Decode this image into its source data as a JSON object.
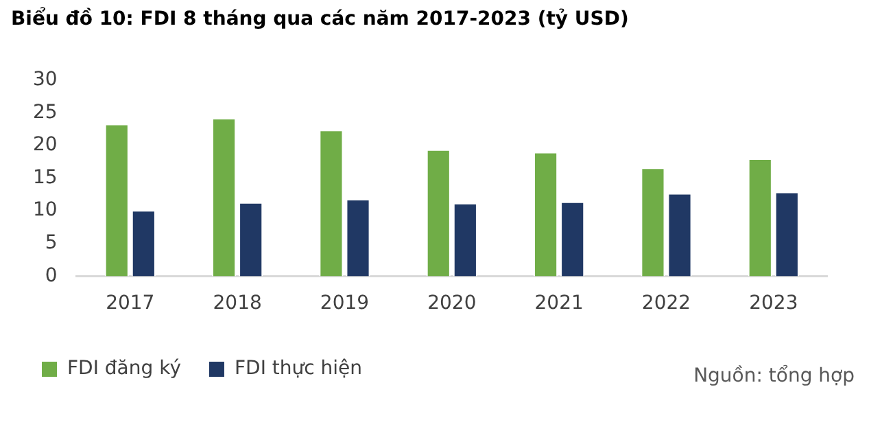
{
  "chart_data": {
    "type": "bar",
    "title": "Biểu đồ 10: FDI 8 tháng qua các năm 2017-2023 (tỷ USD)",
    "categories": [
      "2017",
      "2018",
      "2019",
      "2020",
      "2021",
      "2022",
      "2023"
    ],
    "series": [
      {
        "name": "FDI đăng ký",
        "color": "#70ad47",
        "values": [
          23.3,
          24.2,
          22.4,
          19.4,
          19.0,
          16.6,
          18.0
        ]
      },
      {
        "name": "FDI thực hiện",
        "color": "#203864",
        "values": [
          10.1,
          11.3,
          11.8,
          11.2,
          11.4,
          12.7,
          12.9
        ]
      }
    ],
    "ylim": [
      0,
      30
    ],
    "yticks": [
      0,
      5,
      10,
      15,
      20,
      25,
      30
    ],
    "grid": false,
    "legend": "bottom left",
    "annotations": [
      "Nguồn: tổng hợp"
    ]
  }
}
